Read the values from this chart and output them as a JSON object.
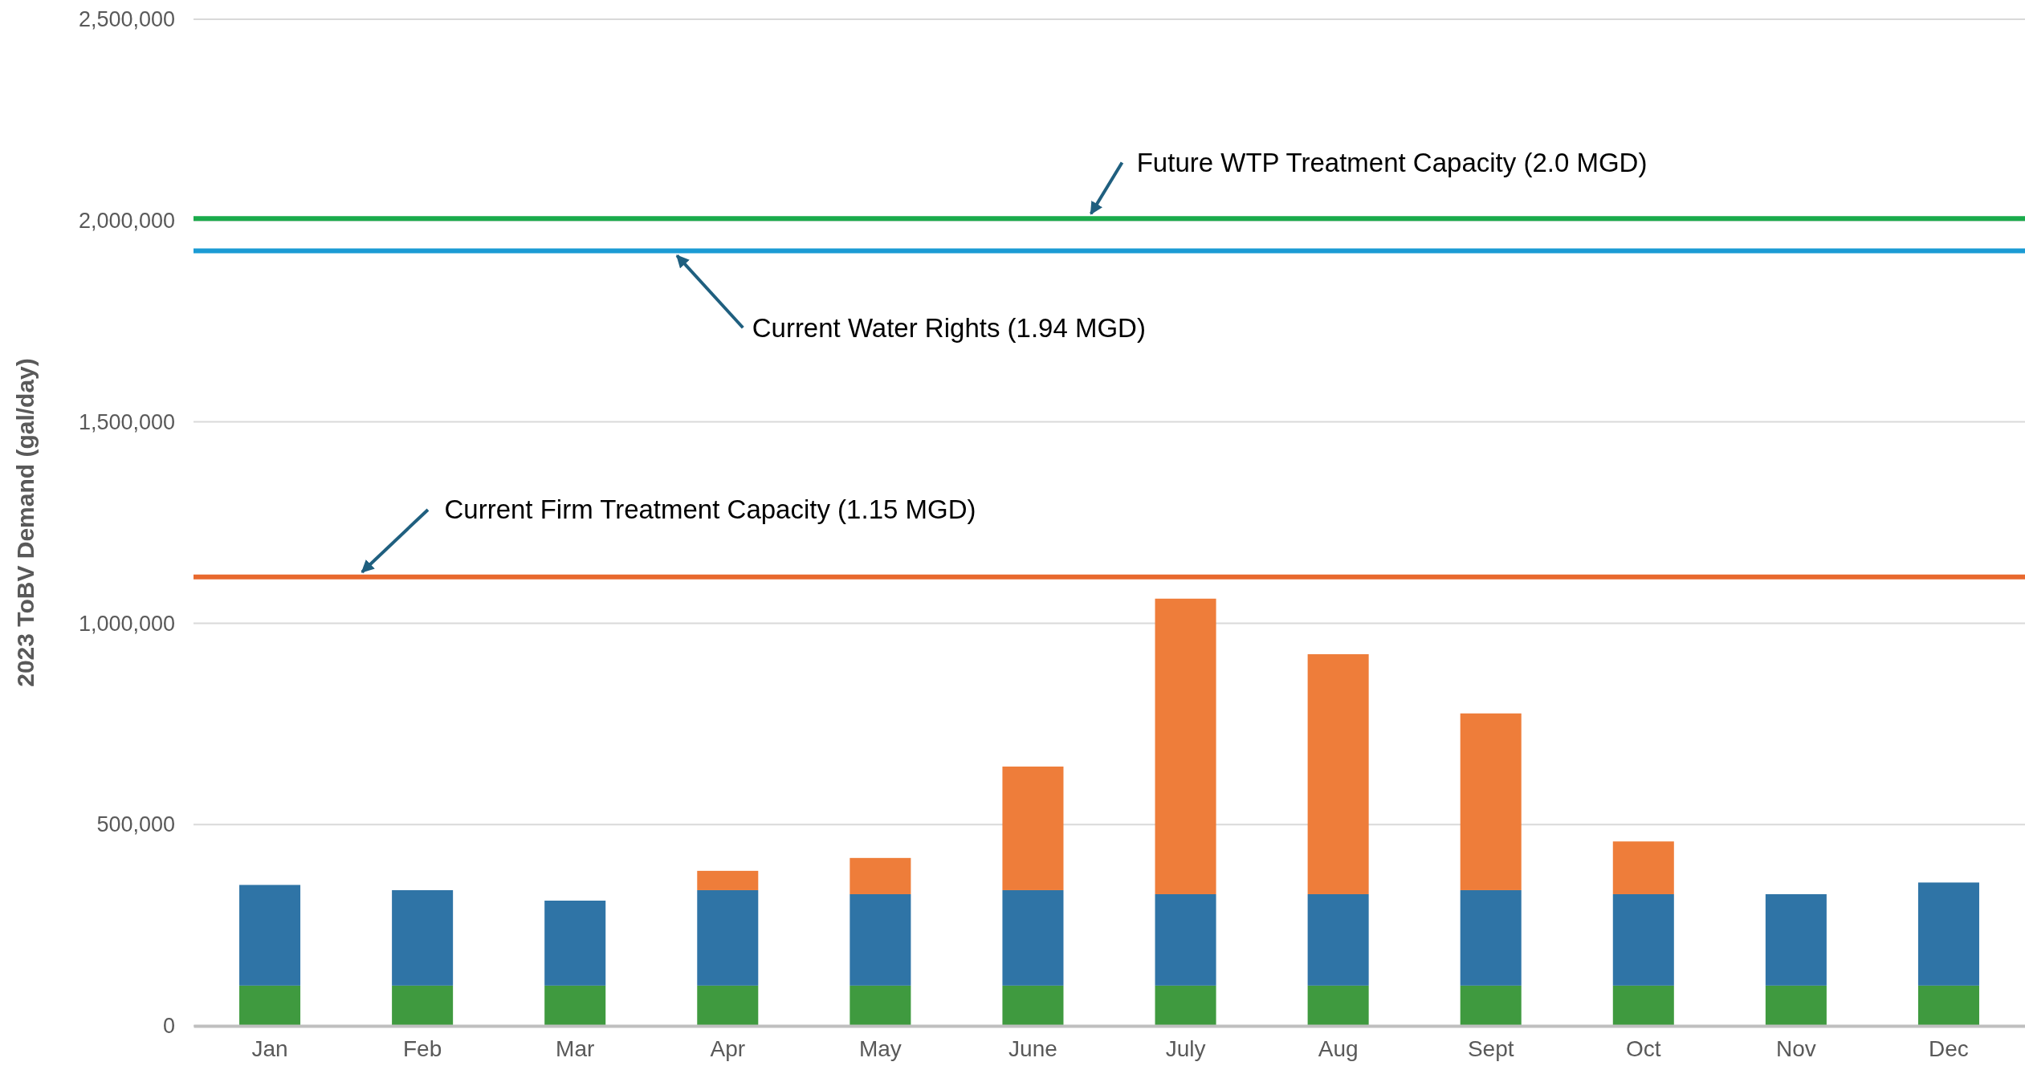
{
  "chart_data": {
    "type": "bar",
    "stacked": true,
    "ylabel": "2023 ToBV Demand (gal/day)",
    "categories": [
      "Jan",
      "Feb",
      "Mar",
      "Apr",
      "May",
      "June",
      "July",
      "Aug",
      "Sept",
      "Oct",
      "Nov",
      "Dec"
    ],
    "series": [
      {
        "color": "#3f9a3f",
        "values": [
          100000,
          100000,
          100000,
          100000,
          100000,
          100000,
          100000,
          100000,
          100000,
          100000,
          100000,
          100000
        ]
      },
      {
        "color": "#2f74a6",
        "values": [
          250000,
          237000,
          211000,
          237000,
          227000,
          237000,
          227000,
          227000,
          237000,
          227000,
          227000,
          256000
        ]
      },
      {
        "color": "#ee7d3a",
        "values": [
          null,
          null,
          null,
          48000,
          90000,
          307000,
          734000,
          596000,
          439000,
          131000,
          null,
          null
        ]
      }
    ],
    "ylim": [
      0,
      2500000
    ],
    "yticks": [
      0,
      {
        "value": 500000,
        "label": "500,000"
      },
      {
        "value": 1000000,
        "label": "1,000,000"
      },
      {
        "value": 1500000,
        "label": "1,500,000"
      },
      {
        "value": 2000000,
        "label": "2,000,000"
      },
      {
        "value": 2500000,
        "label": "2,500,000"
      }
    ],
    "grid": "y",
    "ref_lines": [
      {
        "axis": "y",
        "value": 2005000,
        "label": "Future WTP Treatment Capacity (2.0 MGD)",
        "color": "#1aab4b"
      },
      {
        "axis": "y",
        "value": 1925000,
        "label": "Current Water Rights (1.94 MGD)",
        "color": "#1b9bd4"
      },
      {
        "axis": "y",
        "value": 1115000,
        "label": "Current Firm Treatment Capacity (1.15 MGD)",
        "color": "#e8692e"
      }
    ]
  }
}
